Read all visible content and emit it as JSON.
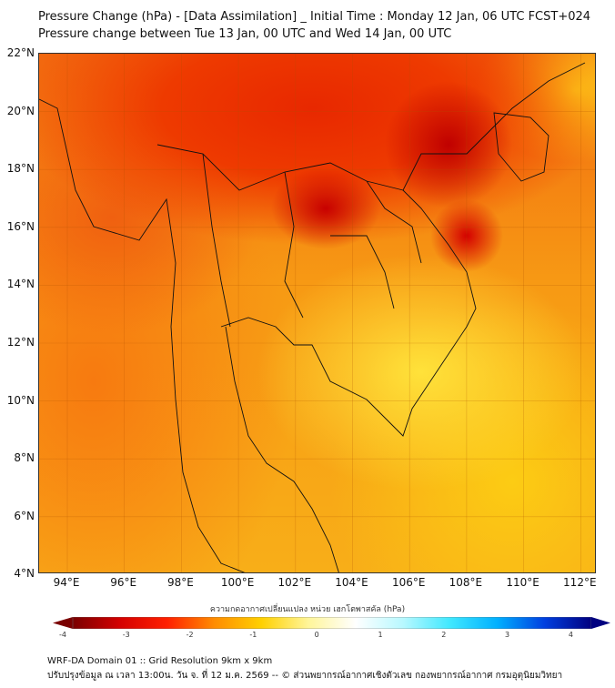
{
  "title_line1": "Pressure Change (hPa) - [Data Assimilation] _ Initial Time : Monday 12 Jan, 06 UTC FCST+024",
  "title_line2": "Pressure change between Tue 13 Jan, 00 UTC and Wed 14 Jan, 00 UTC",
  "lat_labels": [
    "22°N",
    "20°N",
    "18°N",
    "16°N",
    "14°N",
    "12°N",
    "10°N",
    "8°N",
    "6°N",
    "4°N"
  ],
  "lon_labels": [
    "94°E",
    "96°E",
    "98°E",
    "100°E",
    "102°E",
    "104°E",
    "106°E",
    "108°E",
    "110°E",
    "112°E"
  ],
  "colorbar": {
    "title": "ความกดอากาศเปลี่ยนแปลง หน่วย เฮกโตพาสคัล (hPa)",
    "ticks": [
      "-4",
      "-3",
      "-2",
      "-1",
      "0",
      "1",
      "2",
      "3",
      "4"
    ],
    "range": [
      -4,
      4
    ],
    "colors": [
      "#7a0000",
      "#d40000",
      "#ff2000",
      "#ff8c00",
      "#ffd000",
      "#fff59a",
      "#ffffff",
      "#b8f8ff",
      "#40e8ff",
      "#00b0ff",
      "#0040e0",
      "#000080"
    ]
  },
  "footer_line1": "WRF-DA Domain 01 :: Grid Resolution 9km x 9km",
  "footer_line2": "ปรับปรุงข้อมูล ณ เวลา 13:00น. วัน จ. ที่ 12 ม.ค. 2569 -- © ส่วนพยากรณ์อากาศเชิงตัวเลข กองพยากรณ์อากาศ กรมอุตุนิยมวิทยา"
}
